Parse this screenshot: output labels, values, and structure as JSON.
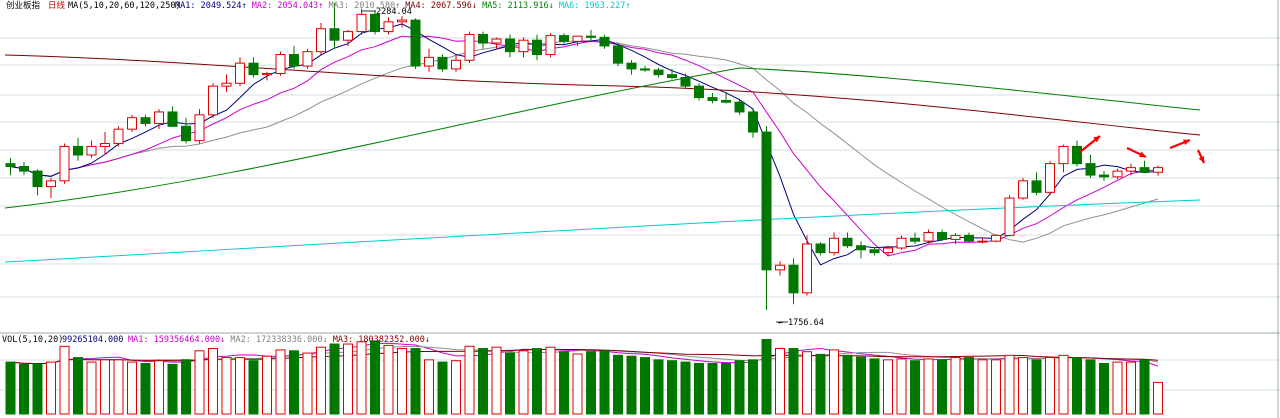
{
  "header": {
    "title": "创业板指",
    "period": "日线",
    "ma_params": "MA(5,10,20,60,120,250)",
    "items": [
      {
        "label": "MA1:",
        "value": "2049.524↑",
        "color": "#000080"
      },
      {
        "label": "MA2:",
        "value": "2054.043↑",
        "color": "#cc00cc"
      },
      {
        "label": "MA3:",
        "value": "2010.580↑",
        "color": "#808080"
      },
      {
        "label": "MA4:",
        "value": "2067.596↓",
        "color": "#800000"
      },
      {
        "label": "MA5:",
        "value": "2113.916↓",
        "color": "#008000"
      },
      {
        "label": "MA6:",
        "value": "1963.227↑",
        "color": "#00cccc"
      }
    ]
  },
  "vol_header": {
    "title": "VOL(5,10,20)",
    "value": "99265104.000",
    "items": [
      {
        "label": "MA1:",
        "value": "159356464.000↓",
        "color": "#cc00cc"
      },
      {
        "label": "MA2:",
        "value": "172338336.000↓",
        "color": "#808080"
      },
      {
        "label": "MA3:",
        "value": "180382352.000↓",
        "color": "#800000"
      }
    ]
  },
  "annotations": {
    "high": "2284.04",
    "low": "1756.64"
  },
  "colors": {
    "up": "#e00000",
    "down": "#007800",
    "grid": "#c8d4d8",
    "arrow": "#ff0000"
  },
  "chart_data": {
    "type": "candlestick",
    "title": "创业板指 日线",
    "y_range": [
      1720,
      2300
    ],
    "candles": [
      [
        2015,
        2025,
        1995,
        2010
      ],
      [
        2010,
        2018,
        1995,
        2002
      ],
      [
        2002,
        2005,
        1960,
        1975
      ],
      [
        1975,
        1990,
        1955,
        1985
      ],
      [
        1985,
        2050,
        1980,
        2045
      ],
      [
        2045,
        2060,
        2020,
        2030
      ],
      [
        2030,
        2055,
        2025,
        2045
      ],
      [
        2045,
        2070,
        2030,
        2050
      ],
      [
        2050,
        2080,
        2045,
        2075
      ],
      [
        2075,
        2100,
        2070,
        2095
      ],
      [
        2095,
        2100,
        2080,
        2085
      ],
      [
        2085,
        2110,
        2075,
        2105
      ],
      [
        2105,
        2115,
        2080,
        2080
      ],
      [
        2080,
        2095,
        2050,
        2055
      ],
      [
        2055,
        2110,
        2050,
        2100
      ],
      [
        2100,
        2155,
        2095,
        2150
      ],
      [
        2150,
        2170,
        2140,
        2155
      ],
      [
        2155,
        2200,
        2150,
        2190
      ],
      [
        2190,
        2200,
        2165,
        2170
      ],
      [
        2170,
        2175,
        2160,
        2172
      ],
      [
        2172,
        2210,
        2168,
        2205
      ],
      [
        2205,
        2220,
        2180,
        2185
      ],
      [
        2185,
        2215,
        2180,
        2210
      ],
      [
        2210,
        2260,
        2205,
        2250
      ],
      [
        2250,
        2295,
        2215,
        2230
      ],
      [
        2230,
        2248,
        2220,
        2245
      ],
      [
        2245,
        2285,
        2240,
        2275
      ],
      [
        2275,
        2282,
        2240,
        2245
      ],
      [
        2245,
        2270,
        2240,
        2262
      ],
      [
        2262,
        2272,
        2252,
        2265
      ],
      [
        2265,
        2268,
        2180,
        2185
      ],
      [
        2185,
        2215,
        2175,
        2200
      ],
      [
        2200,
        2205,
        2175,
        2180
      ],
      [
        2180,
        2205,
        2175,
        2195
      ],
      [
        2195,
        2245,
        2190,
        2240
      ],
      [
        2240,
        2245,
        2215,
        2225
      ],
      [
        2225,
        2235,
        2215,
        2232
      ],
      [
        2232,
        2240,
        2200,
        2210
      ],
      [
        2210,
        2235,
        2200,
        2230
      ],
      [
        2230,
        2240,
        2195,
        2205
      ],
      [
        2205,
        2242,
        2200,
        2238
      ],
      [
        2238,
        2242,
        2222,
        2228
      ],
      [
        2228,
        2238,
        2220,
        2237
      ],
      [
        2237,
        2248,
        2228,
        2235
      ],
      [
        2235,
        2240,
        2215,
        2220
      ],
      [
        2220,
        2225,
        2185,
        2190
      ],
      [
        2190,
        2195,
        2170,
        2180
      ],
      [
        2180,
        2185,
        2175,
        2178
      ],
      [
        2178,
        2182,
        2165,
        2170
      ],
      [
        2170,
        2180,
        2162,
        2165
      ],
      [
        2165,
        2172,
        2145,
        2150
      ],
      [
        2150,
        2155,
        2125,
        2130
      ],
      [
        2130,
        2138,
        2120,
        2125
      ],
      [
        2125,
        2140,
        2120,
        2122
      ],
      [
        2122,
        2128,
        2100,
        2105
      ],
      [
        2105,
        2110,
        2060,
        2070
      ],
      [
        2070,
        2080,
        1760,
        1830
      ],
      [
        1830,
        1845,
        1820,
        1838
      ],
      [
        1838,
        1850,
        1770,
        1790
      ],
      [
        1790,
        1890,
        1785,
        1875
      ],
      [
        1875,
        1878,
        1855,
        1860
      ],
      [
        1860,
        1895,
        1855,
        1885
      ],
      [
        1885,
        1895,
        1868,
        1872
      ],
      [
        1872,
        1880,
        1850,
        1865
      ],
      [
        1865,
        1870,
        1855,
        1860
      ],
      [
        1860,
        1872,
        1855,
        1868
      ],
      [
        1868,
        1890,
        1865,
        1885
      ],
      [
        1885,
        1895,
        1875,
        1880
      ],
      [
        1880,
        1900,
        1876,
        1895
      ],
      [
        1895,
        1900,
        1880,
        1883
      ],
      [
        1883,
        1894,
        1875,
        1890
      ],
      [
        1890,
        1895,
        1878,
        1880
      ],
      [
        1880,
        1886,
        1876,
        1880
      ],
      [
        1880,
        1892,
        1878,
        1890
      ],
      [
        1890,
        1960,
        1888,
        1955
      ],
      [
        1955,
        1990,
        1952,
        1985
      ],
      [
        1985,
        2000,
        1960,
        1965
      ],
      [
        1965,
        2020,
        1960,
        2015
      ],
      [
        2015,
        2048,
        2000,
        2045
      ],
      [
        2045,
        2055,
        2010,
        2015
      ],
      [
        2015,
        2030,
        1990,
        1995
      ],
      [
        1995,
        2002,
        1985,
        1992
      ],
      [
        1992,
        2006,
        1988,
        2002
      ],
      [
        2002,
        2015,
        1995,
        2008
      ],
      [
        2008,
        2020,
        2000,
        2000
      ],
      [
        2000,
        2012,
        1994,
        2008
      ]
    ],
    "volume": [
      115,
      110,
      110,
      115,
      150,
      125,
      115,
      120,
      120,
      115,
      112,
      118,
      110,
      120,
      140,
      145,
      125,
      125,
      118,
      128,
      142,
      140,
      135,
      148,
      155,
      155,
      160,
      162,
      152,
      145,
      145,
      120,
      115,
      118,
      150,
      145,
      148,
      135,
      140,
      145,
      148,
      138,
      133,
      138,
      140,
      130,
      128,
      125,
      120,
      118,
      115,
      112,
      112,
      112,
      118,
      120,
      165,
      145,
      145,
      138,
      132,
      142,
      130,
      126,
      122,
      120,
      122,
      118,
      122,
      120,
      125,
      125,
      120,
      120,
      130,
      125,
      120,
      125,
      130,
      125,
      120,
      112,
      115,
      115,
      120,
      70
    ],
    "annotations": [
      {
        "text": "2284.04",
        "kind": "high"
      },
      {
        "text": "1756.64",
        "kind": "low"
      }
    ]
  }
}
